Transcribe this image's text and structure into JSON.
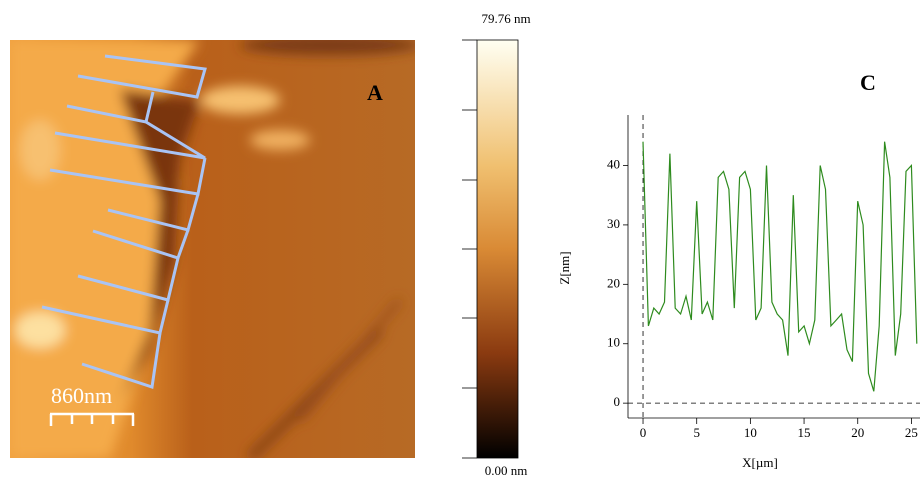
{
  "afm_image": {
    "label": "A",
    "scale_bar": "860nm",
    "colorbar_max": "79.76 nm",
    "colorbar_min": "0.00 nm"
  },
  "chart_data": {
    "type": "line",
    "title": "C",
    "x_label": "X[µm]",
    "y_label": "Z[nm]",
    "color": "#2e8b1e",
    "x": [
      0,
      0.5,
      1,
      1.5,
      2,
      2.5,
      3,
      3.5,
      4,
      4.5,
      5,
      5.5,
      6,
      6.5,
      7,
      7.5,
      8,
      8.5,
      9,
      9.5,
      10,
      10.5,
      11,
      11.5,
      12,
      12.5,
      13,
      13.5,
      14,
      14.5,
      15,
      15.5,
      16,
      16.5,
      17,
      17.5,
      18,
      18.5,
      19,
      19.5,
      20,
      20.5,
      21,
      21.5,
      22,
      22.5,
      23,
      23.5,
      24,
      24.5,
      25,
      25.5
    ],
    "values": [
      44,
      13,
      16,
      15,
      17,
      42,
      16,
      15,
      18,
      14,
      34,
      15,
      17,
      14,
      38,
      39,
      36,
      16,
      38,
      39,
      36,
      14,
      16,
      40,
      17,
      15,
      14,
      8,
      35,
      12,
      13,
      10,
      14,
      40,
      36,
      13,
      14,
      15,
      9,
      7,
      34,
      30,
      5,
      2,
      13,
      44,
      38,
      8,
      15,
      39,
      40,
      10
    ],
    "xlim": [
      -1.4,
      25.8
    ],
    "ylim": [
      -2.5,
      48.5
    ],
    "xticks": [
      0,
      5,
      10,
      15,
      20,
      25
    ],
    "yticks": [
      0,
      10,
      20,
      30,
      40
    ]
  }
}
